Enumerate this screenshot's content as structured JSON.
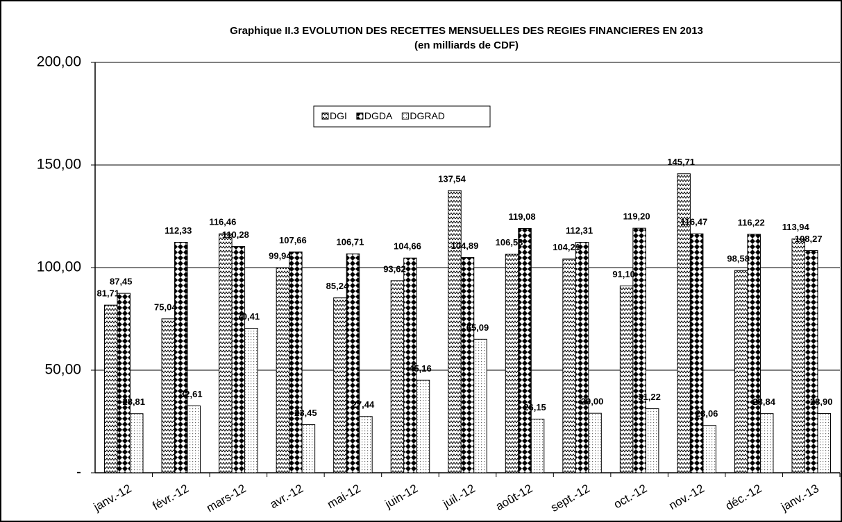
{
  "chart_data": {
    "type": "bar",
    "title": "Graphique II.3 EVOLUTION DES RECETTES MENSUELLES DES REGIES FINANCIERES EN 2013",
    "subtitle": "(en milliards de CDF)",
    "categories": [
      "janv.-12",
      "févr.-12",
      "mars-12",
      "avr.-12",
      "mai-12",
      "juin-12",
      "juil.-12",
      "août-12",
      "sept.-12",
      "oct.-12",
      "nov.-12",
      "déc.-12",
      "janv.-13"
    ],
    "series": [
      {
        "name": "DGI",
        "color": "#000000",
        "values": [
          81.71,
          75.04,
          116.46,
          99.94,
          85.24,
          93.62,
          137.54,
          106.58,
          104.21,
          91.1,
          145.71,
          98.58,
          113.94
        ],
        "value_labels": [
          "81,71",
          "75,04",
          "116,46",
          "99,94",
          "85,24",
          "93,62",
          "137,54",
          "106,58",
          "104,21",
          "91,10",
          "145,71",
          "98,58",
          "113,94"
        ]
      },
      {
        "name": "DGDA",
        "color": "#000000",
        "values": [
          87.45,
          112.33,
          110.28,
          107.66,
          106.71,
          104.66,
          104.89,
          119.08,
          112.31,
          119.2,
          116.47,
          116.22,
          108.27
        ],
        "value_labels": [
          "87,45",
          "112,33",
          "110,28",
          "107,66",
          "106,71",
          "104,66",
          "104,89",
          "119,08",
          "112,31",
          "119,20",
          "116,47",
          "116,22",
          "108,27"
        ]
      },
      {
        "name": "DGRAD",
        "color": "#000000",
        "values": [
          28.81,
          32.61,
          70.41,
          23.45,
          27.44,
          45.16,
          65.09,
          26.15,
          29.0,
          31.22,
          23.06,
          28.84,
          28.9
        ],
        "value_labels": [
          "28,81",
          "32,61",
          "70,41",
          "23,45",
          "27,44",
          "45,16",
          "65,09",
          "26,15",
          "29,00",
          "31,22",
          "23,06",
          "28,84",
          "28,90"
        ]
      }
    ],
    "ylim": [
      0,
      200
    ],
    "yticks": [
      {
        "value": 0,
        "label": "-"
      },
      {
        "value": 50,
        "label": "50,00"
      },
      {
        "value": 100,
        "label": "100,00"
      },
      {
        "value": 150,
        "label": "150,00"
      },
      {
        "value": 200,
        "label": "200,00"
      }
    ],
    "grid": true
  }
}
